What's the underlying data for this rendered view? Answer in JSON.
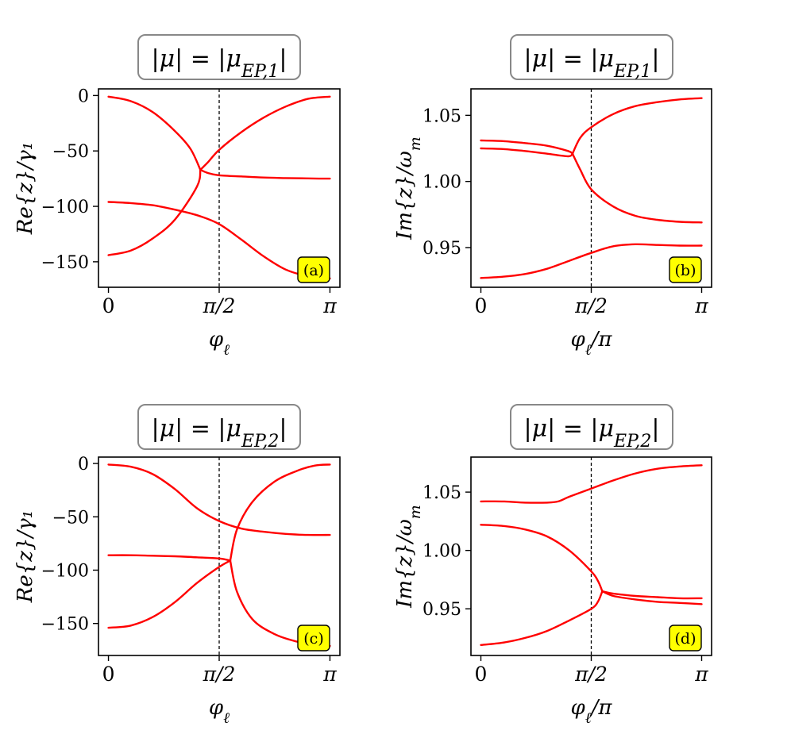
{
  "chart_data": [
    {
      "panel": "a",
      "type": "line",
      "title": "|μ| = |μ_EP,1|",
      "xlabel": "φ_ℓ",
      "ylabel": "Re{z}/γ₁",
      "xlim": [
        0,
        1
      ],
      "ylim": [
        -173,
        6
      ],
      "xticks": [
        0,
        0.5,
        1
      ],
      "xtick_labels": [
        "0",
        "π/2",
        "π"
      ],
      "yticks": [
        0,
        -50,
        -100,
        -150
      ],
      "ytick_labels": [
        "0",
        "−50",
        "−100",
        "−150"
      ],
      "vline_x": 0.5,
      "badge": "(a)",
      "color": "#ff0000",
      "series": [
        {
          "x": [
            0,
            0.1,
            0.2,
            0.3,
            0.37,
            0.415
          ],
          "y": [
            -1,
            -5,
            -15,
            -32,
            -48,
            -67
          ]
        },
        {
          "x": [
            0.415,
            0.45,
            0.5,
            0.6,
            0.7,
            0.8,
            0.9,
            1.0
          ],
          "y": [
            -67,
            -60,
            -49,
            -33,
            -20,
            -10,
            -3,
            -1
          ]
        },
        {
          "x": [
            0.415,
            0.45,
            0.5,
            0.6,
            0.7,
            0.8,
            0.9,
            1.0
          ],
          "y": [
            -67,
            -70,
            -72,
            -73,
            -74,
            -74.5,
            -74.8,
            -75
          ]
        },
        {
          "x": [
            0,
            0.1,
            0.2,
            0.3,
            0.4,
            0.415
          ],
          "y": [
            -144,
            -140,
            -129,
            -112,
            -82,
            -67
          ]
        },
        {
          "x": [
            0,
            0.1,
            0.2,
            0.3,
            0.4,
            0.5,
            0.6,
            0.7,
            0.8,
            0.9,
            1.0
          ],
          "y": [
            -96,
            -97,
            -99,
            -103,
            -108,
            -116,
            -130,
            -145,
            -157,
            -163,
            -165
          ]
        }
      ]
    },
    {
      "panel": "b",
      "type": "line",
      "title": "|μ| = |μ_EP,1|",
      "xlabel": "φ_ℓ/π",
      "ylabel": "Im{z}/ω_m",
      "xlim": [
        0,
        1
      ],
      "ylim": [
        0.92,
        1.07
      ],
      "xticks": [
        0,
        0.5,
        1
      ],
      "xtick_labels": [
        "0",
        "π/2",
        "π"
      ],
      "yticks": [
        1.05,
        1.0,
        0.95
      ],
      "ytick_labels": [
        "1.05",
        "1.00",
        "0.95"
      ],
      "vline_x": 0.5,
      "badge": "(b)",
      "color": "#ff0000",
      "series": [
        {
          "x": [
            0,
            0.1,
            0.2,
            0.3,
            0.395,
            0.415
          ],
          "y": [
            1.031,
            1.0305,
            1.029,
            1.027,
            1.023,
            1.021
          ]
        },
        {
          "x": [
            0,
            0.1,
            0.2,
            0.3,
            0.395,
            0.415
          ],
          "y": [
            1.025,
            1.0245,
            1.023,
            1.021,
            1.019,
            1.021
          ]
        },
        {
          "x": [
            0.415,
            0.45,
            0.5,
            0.6,
            0.7,
            0.8,
            0.9,
            1.0
          ],
          "y": [
            1.021,
            1.033,
            1.041,
            1.051,
            1.057,
            1.06,
            1.062,
            1.063
          ]
        },
        {
          "x": [
            0.415,
            0.45,
            0.5,
            0.6,
            0.7,
            0.8,
            0.9,
            1.0
          ],
          "y": [
            1.021,
            1.009,
            0.994,
            0.981,
            0.974,
            0.971,
            0.9695,
            0.969
          ]
        },
        {
          "x": [
            0,
            0.1,
            0.2,
            0.3,
            0.4,
            0.5,
            0.6,
            0.7,
            0.8,
            0.9,
            1.0
          ],
          "y": [
            0.927,
            0.928,
            0.93,
            0.934,
            0.94,
            0.946,
            0.951,
            0.9525,
            0.952,
            0.9515,
            0.9515
          ]
        }
      ]
    },
    {
      "panel": "c",
      "type": "line",
      "title": "|μ| = |μ_EP,2|",
      "xlabel": "φ_ℓ",
      "ylabel": "Re{z}/γ₁",
      "xlim": [
        0,
        1
      ],
      "ylim": [
        -180,
        6
      ],
      "xticks": [
        0,
        0.5,
        1
      ],
      "xtick_labels": [
        "0",
        "π/2",
        "π"
      ],
      "yticks": [
        0,
        -50,
        -100,
        -150
      ],
      "ytick_labels": [
        "0",
        "−50",
        "−100",
        "−150"
      ],
      "vline_x": 0.5,
      "badge": "(c)",
      "color": "#ff0000",
      "series": [
        {
          "x": [
            0,
            0.1,
            0.2,
            0.3,
            0.4,
            0.5,
            0.6,
            0.7,
            0.8,
            0.9,
            1.0
          ],
          "y": [
            -1,
            -3,
            -10,
            -24,
            -42,
            -54,
            -61,
            -64,
            -66,
            -67,
            -67
          ]
        },
        {
          "x": [
            0,
            0.1,
            0.2,
            0.3,
            0.4,
            0.5,
            0.55
          ],
          "y": [
            -86,
            -86,
            -86.5,
            -87,
            -88,
            -89,
            -91
          ]
        },
        {
          "x": [
            0,
            0.1,
            0.2,
            0.3,
            0.4,
            0.5,
            0.55
          ],
          "y": [
            -154,
            -152,
            -144,
            -130,
            -112,
            -97,
            -91
          ]
        },
        {
          "x": [
            0.55,
            0.58,
            0.65,
            0.75,
            0.85,
            0.93,
            1.0
          ],
          "y": [
            -91,
            -62,
            -36,
            -17,
            -7,
            -2,
            -1
          ]
        },
        {
          "x": [
            0.55,
            0.58,
            0.65,
            0.75,
            0.85,
            0.93,
            1.0
          ],
          "y": [
            -91,
            -120,
            -146,
            -160,
            -167,
            -170,
            -171
          ]
        }
      ]
    },
    {
      "panel": "d",
      "type": "line",
      "title": "|μ| = |μ_EP,2|",
      "xlabel": "φ_ℓ/π",
      "ylabel": "Im{z}/ω_m",
      "xlim": [
        0,
        1
      ],
      "ylim": [
        0.91,
        1.08
      ],
      "xticks": [
        0,
        0.5,
        1
      ],
      "xtick_labels": [
        "0",
        "π/2",
        "π"
      ],
      "yticks": [
        1.05,
        1.0,
        0.95
      ],
      "ytick_labels": [
        "1.05",
        "1.00",
        "0.95"
      ],
      "vline_x": 0.5,
      "badge": "(d)",
      "color": "#ff0000",
      "series": [
        {
          "x": [
            0,
            0.1,
            0.2,
            0.3,
            0.35,
            0.4,
            0.5,
            0.6,
            0.7,
            0.8,
            0.9,
            1.0
          ],
          "y": [
            1.042,
            1.042,
            1.041,
            1.041,
            1.042,
            1.046,
            1.053,
            1.06,
            1.066,
            1.07,
            1.072,
            1.073
          ]
        },
        {
          "x": [
            0,
            0.1,
            0.2,
            0.3,
            0.4,
            0.5,
            0.53,
            0.55
          ],
          "y": [
            1.022,
            1.021,
            1.018,
            1.012,
            1.0,
            0.982,
            0.974,
            0.965
          ]
        },
        {
          "x": [
            0,
            0.1,
            0.2,
            0.3,
            0.4,
            0.5,
            0.53,
            0.55
          ],
          "y": [
            0.919,
            0.921,
            0.925,
            0.931,
            0.94,
            0.95,
            0.956,
            0.965
          ]
        },
        {
          "x": [
            0.55,
            0.6,
            0.7,
            0.8,
            0.9,
            1.0
          ],
          "y": [
            0.965,
            0.963,
            0.961,
            0.96,
            0.959,
            0.959
          ]
        },
        {
          "x": [
            0.55,
            0.6,
            0.7,
            0.8,
            0.9,
            1.0
          ],
          "y": [
            0.965,
            0.961,
            0.958,
            0.956,
            0.955,
            0.954
          ]
        }
      ]
    }
  ]
}
